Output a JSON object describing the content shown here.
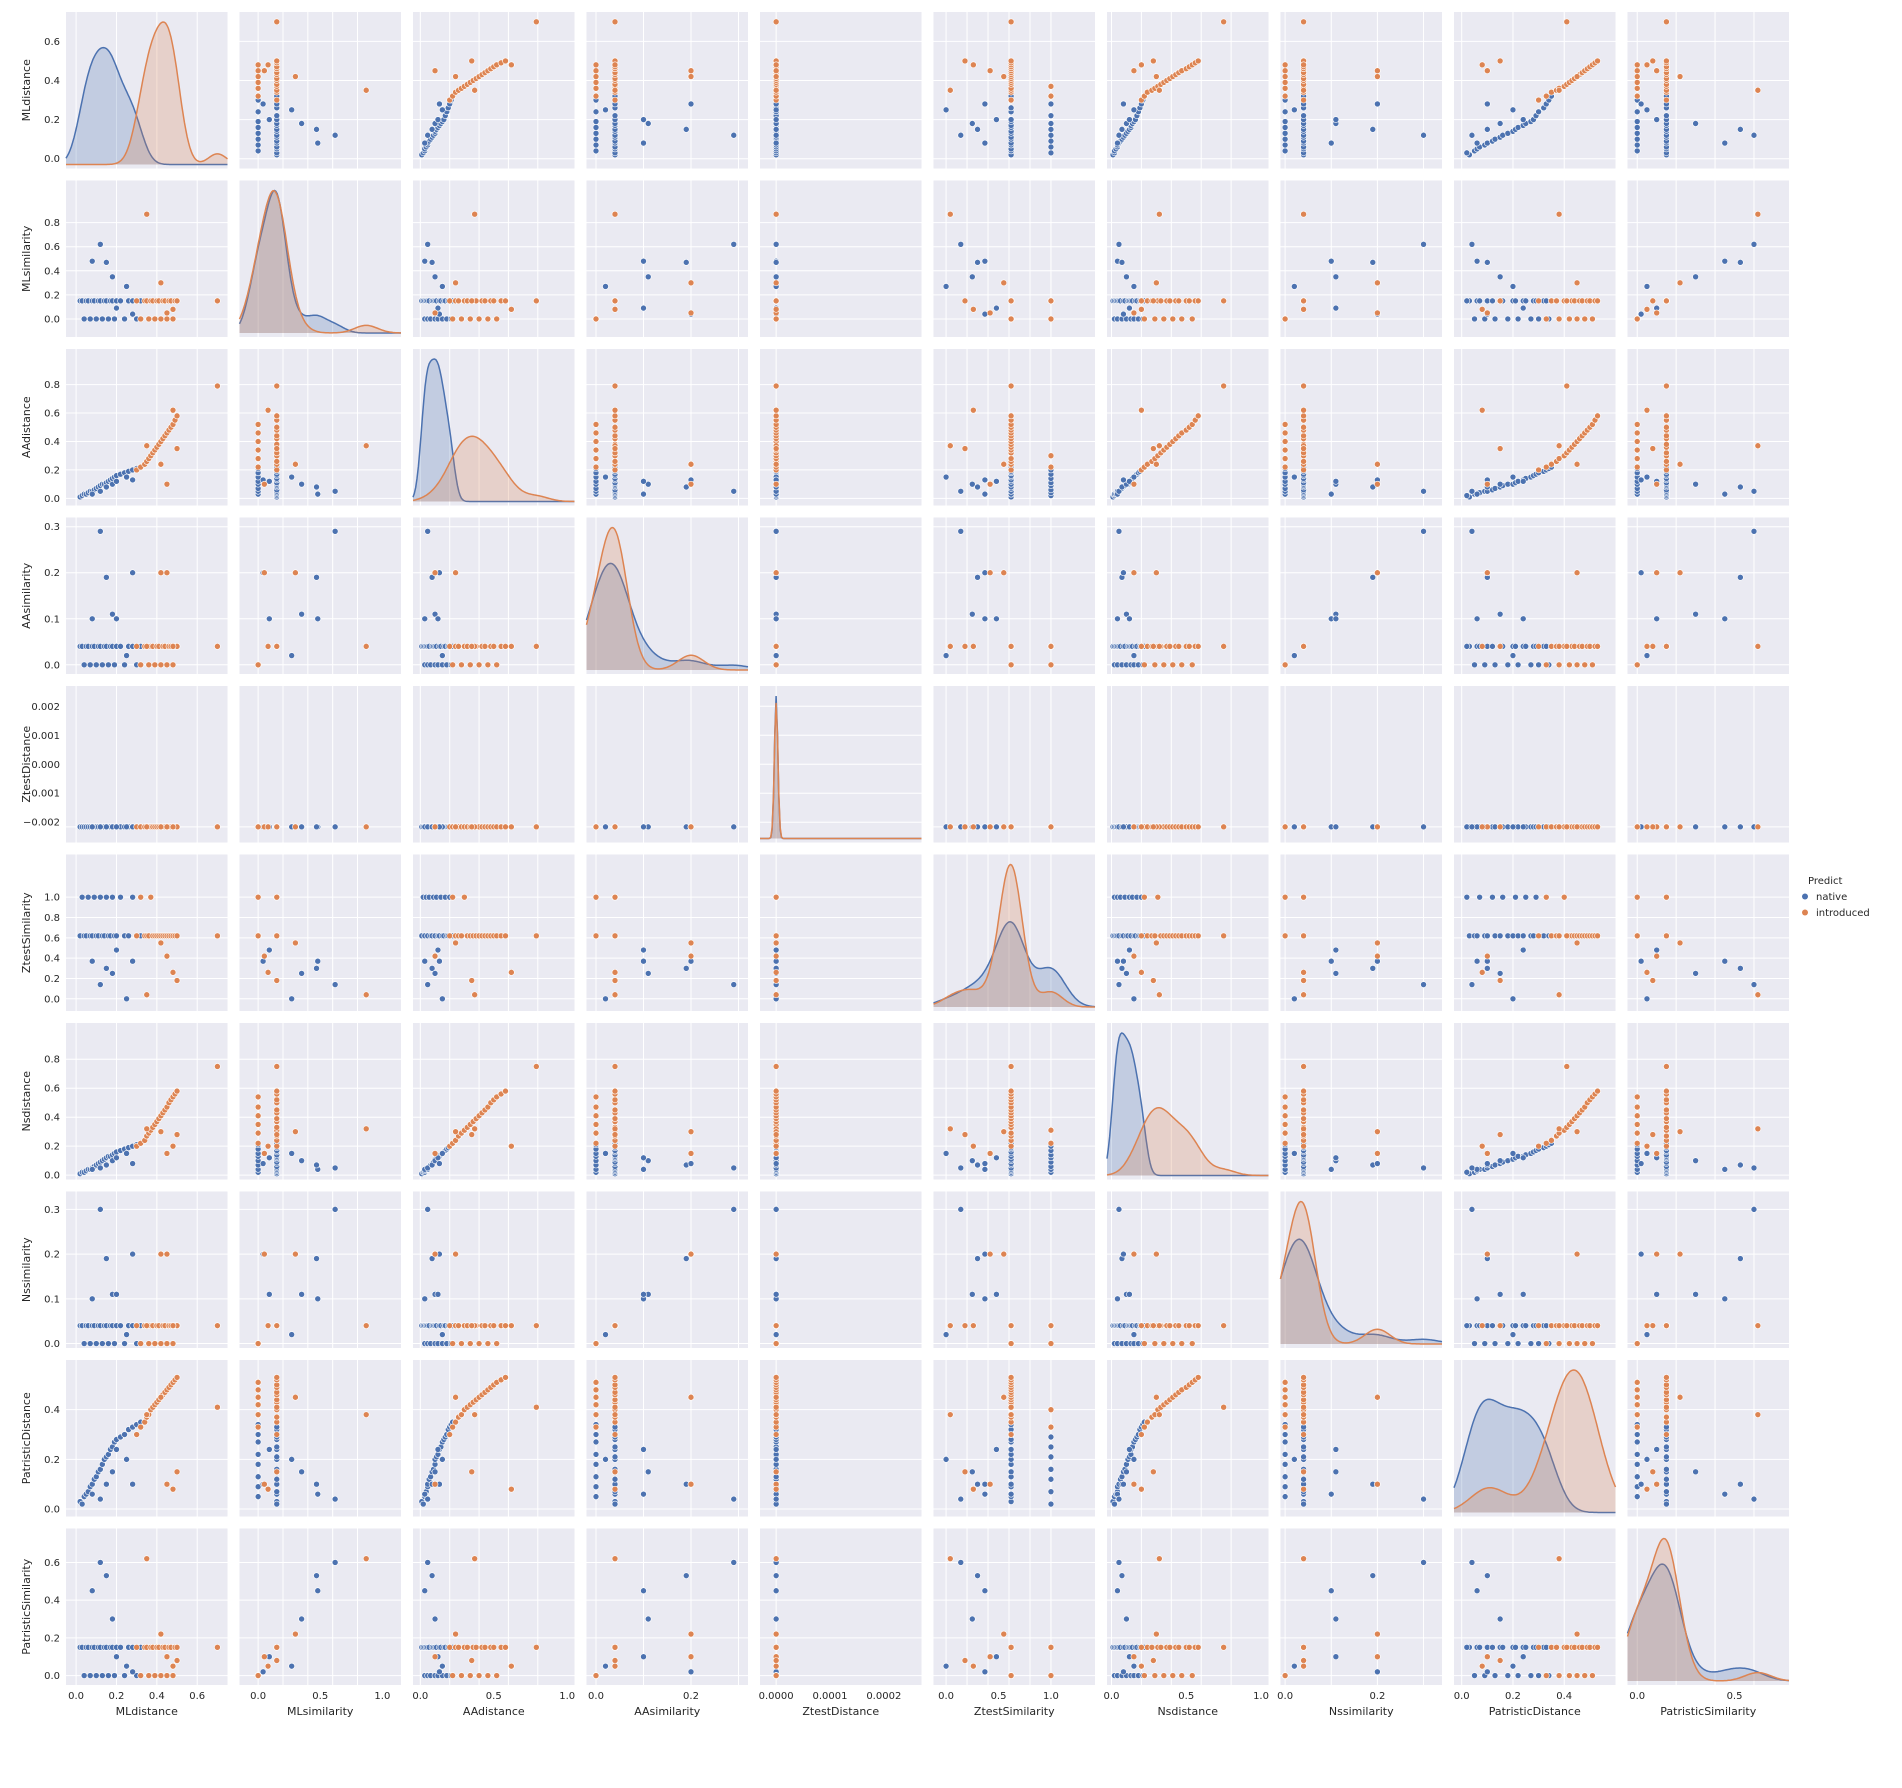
{
  "chart_data": {
    "type": "scatter",
    "subtype": "pairplot",
    "variables": [
      "MLdistance",
      "MLsimilarity",
      "AAdistance",
      "AAsimilarity",
      "ZtestDistance",
      "ZtestSimilarity",
      "Nsdistance",
      "Nssimilarity",
      "PatristicDistance",
      "PatristicSimilarity"
    ],
    "ranges": {
      "MLdistance": [
        -0.05,
        0.75
      ],
      "MLsimilarity": [
        -0.15,
        1.15
      ],
      "AAdistance": [
        -0.05,
        1.05
      ],
      "AAsimilarity": [
        -0.02,
        0.32
      ],
      "ZtestDistance": [
        -3e-05,
        0.00027
      ],
      "ZtestSimilarity": [
        -0.12,
        1.42
      ],
      "Nsdistance": [
        -0.03,
        1.05
      ],
      "Nssimilarity": [
        -0.01,
        0.34
      ],
      "PatristicDistance": [
        -0.03,
        0.6
      ],
      "PatristicSimilarity": [
        -0.05,
        0.78
      ]
    },
    "kde_ranges_y": {
      "ZtestDistance": [
        -0.0027,
        0.0027
      ]
    },
    "ticks": {
      "MLdistance": [
        0.0,
        0.2,
        0.4,
        0.6
      ],
      "MLsimilarity": [
        0.0,
        0.2,
        0.4,
        0.6,
        0.8
      ],
      "AAdistance": [
        0.0,
        0.2,
        0.4,
        0.6,
        0.8
      ],
      "AAsimilarity": [
        0.0,
        0.1,
        0.2,
        0.3
      ],
      "ZtestDistance": [
        -0.002,
        -0.001,
        0.0,
        0.001,
        0.002
      ],
      "ZtestSimilarity": [
        0.0,
        0.2,
        0.4,
        0.6,
        0.8,
        1.0
      ],
      "Nsdistance": [
        0.0,
        0.2,
        0.4,
        0.6,
        0.8
      ],
      "Nssimilarity": [
        0.0,
        0.1,
        0.2,
        0.3
      ],
      "PatristicDistance": [
        0.0,
        0.2,
        0.4
      ],
      "PatristicSimilarity": [
        0.0,
        0.2,
        0.4,
        0.6
      ]
    },
    "xticks_bottom": {
      "MLdistance": [
        0.0,
        0.2,
        0.4,
        0.6
      ],
      "MLsimilarity": [
        0.0,
        0.5,
        1.0
      ],
      "AAdistance": [
        0.0,
        0.5,
        1.0
      ],
      "AAsimilarity": [
        0.0,
        0.2
      ],
      "ZtestDistance": [
        0.0,
        0.0001,
        0.0002
      ],
      "ZtestSimilarity": [
        0.0,
        0.5,
        1.0
      ],
      "Nsdistance": [
        0.0,
        0.5,
        1.0
      ],
      "Nssimilarity": [
        0.0,
        0.2
      ],
      "PatristicDistance": [
        0.0,
        0.2,
        0.4
      ],
      "PatristicSimilarity": [
        0.0,
        0.5
      ]
    },
    "tick_labels": {
      "MLdistance": [
        "0.0",
        "0.2",
        "0.4",
        "0.6"
      ],
      "MLsimilarity": [
        "0.0",
        "0.2",
        "0.4",
        "0.6",
        "0.8"
      ],
      "AAdistance": [
        "0.0",
        "0.2",
        "0.4",
        "0.6",
        "0.8"
      ],
      "AAsimilarity": [
        "0.0",
        "0.1",
        "0.2",
        "0.3"
      ],
      "ZtestDistance": [
        "−0.002",
        "−0.001",
        "0.000",
        "0.001",
        "0.002"
      ],
      "ZtestSimilarity": [
        "0.0",
        "0.2",
        "0.4",
        "0.6",
        "0.8",
        "1.0"
      ],
      "Nsdistance": [
        "0.0",
        "0.2",
        "0.4",
        "0.6",
        "0.8"
      ],
      "Nssimilarity": [
        "0.0",
        "0.1",
        "0.2",
        "0.3"
      ],
      "PatristicDistance": [
        "0.0",
        "0.2",
        "0.4"
      ],
      "PatristicSimilarity": [
        "0.0",
        "0.2",
        "0.4",
        "0.6"
      ]
    },
    "xtick_labels_bottom": {
      "MLdistance": [
        "0.0",
        "0.2",
        "0.4",
        "0.6"
      ],
      "MLsimilarity": [
        "0.0",
        "0.5",
        "1.0"
      ],
      "AAdistance": [
        "0.0",
        "0.5",
        "1.0"
      ],
      "AAsimilarity": [
        "0.0",
        "0.2"
      ],
      "ZtestDistance": [
        "0.0000",
        "0.0001",
        "0.0002"
      ],
      "ZtestSimilarity": [
        "0.0",
        "0.5",
        "1.0"
      ],
      "Nsdistance": [
        "0.0",
        "0.5",
        "1.0"
      ],
      "Nssimilarity": [
        "0.0",
        "0.2"
      ],
      "PatristicDistance": [
        "0.0",
        "0.2",
        "0.4"
      ],
      "PatristicSimilarity": [
        "0.0",
        "0.5"
      ]
    },
    "hue": "Predict",
    "legend": {
      "title": "Predict",
      "entries": [
        "native",
        "introduced"
      ],
      "position": "right-center"
    },
    "colors": {
      "native": "#4c72b0",
      "introduced": "#dd8452",
      "panel_bg": "#eaeaf2",
      "grid": "#ffffff"
    },
    "grid": true,
    "series": [
      {
        "name": "native",
        "points": [
          [
            0.02,
            0.15,
            0.01,
            0.04,
            0.0,
            0.62,
            0.01,
            0.04,
            0.03,
            0.15
          ],
          [
            0.03,
            0.15,
            0.02,
            0.04,
            0.0,
            1.0,
            0.02,
            0.04,
            0.02,
            0.15
          ],
          [
            0.04,
            0.0,
            0.03,
            0.0,
            0.0,
            0.62,
            0.02,
            0.0,
            0.05,
            0.0
          ],
          [
            0.05,
            0.15,
            0.03,
            0.04,
            0.0,
            0.62,
            0.03,
            0.04,
            0.06,
            0.15
          ],
          [
            0.06,
            0.15,
            0.04,
            0.04,
            0.0,
            1.0,
            0.04,
            0.04,
            0.07,
            0.15
          ],
          [
            0.07,
            0.0,
            0.05,
            0.0,
            0.0,
            0.62,
            0.04,
            0.0,
            0.09,
            0.0
          ],
          [
            0.08,
            0.15,
            0.05,
            0.04,
            0.0,
            0.62,
            0.05,
            0.04,
            0.1,
            0.15
          ],
          [
            0.09,
            0.15,
            0.06,
            0.04,
            0.0,
            1.0,
            0.06,
            0.04,
            0.12,
            0.15
          ],
          [
            0.1,
            0.0,
            0.07,
            0.0,
            0.0,
            0.62,
            0.07,
            0.0,
            0.13,
            0.0
          ],
          [
            0.11,
            0.15,
            0.08,
            0.04,
            0.0,
            0.62,
            0.08,
            0.04,
            0.15,
            0.15
          ],
          [
            0.12,
            0.15,
            0.09,
            0.04,
            0.0,
            1.0,
            0.09,
            0.04,
            0.16,
            0.15
          ],
          [
            0.13,
            0.0,
            0.1,
            0.0,
            0.0,
            0.62,
            0.1,
            0.0,
            0.18,
            0.0
          ],
          [
            0.14,
            0.15,
            0.1,
            0.04,
            0.0,
            0.62,
            0.11,
            0.04,
            0.2,
            0.15
          ],
          [
            0.15,
            0.15,
            0.11,
            0.04,
            0.0,
            1.0,
            0.12,
            0.04,
            0.21,
            0.15
          ],
          [
            0.16,
            0.0,
            0.12,
            0.0,
            0.0,
            0.62,
            0.13,
            0.0,
            0.22,
            0.0
          ],
          [
            0.17,
            0.15,
            0.13,
            0.04,
            0.0,
            0.62,
            0.13,
            0.04,
            0.24,
            0.15
          ],
          [
            0.18,
            0.15,
            0.14,
            0.04,
            0.0,
            1.0,
            0.14,
            0.04,
            0.25,
            0.15
          ],
          [
            0.19,
            0.0,
            0.15,
            0.0,
            0.0,
            0.62,
            0.15,
            0.0,
            0.27,
            0.0
          ],
          [
            0.2,
            0.15,
            0.16,
            0.04,
            0.0,
            0.62,
            0.16,
            0.04,
            0.28,
            0.15
          ],
          [
            0.22,
            0.15,
            0.17,
            0.04,
            0.0,
            1.0,
            0.17,
            0.04,
            0.29,
            0.15
          ],
          [
            0.24,
            0.0,
            0.18,
            0.0,
            0.0,
            0.62,
            0.18,
            0.0,
            0.3,
            0.0
          ],
          [
            0.26,
            0.15,
            0.19,
            0.04,
            0.0,
            0.62,
            0.19,
            0.04,
            0.32,
            0.15
          ],
          [
            0.28,
            0.15,
            0.2,
            0.04,
            0.0,
            1.0,
            0.2,
            0.04,
            0.33,
            0.15
          ],
          [
            0.3,
            0.0,
            0.21,
            0.0,
            0.0,
            0.62,
            0.21,
            0.0,
            0.34,
            0.0
          ],
          [
            0.32,
            0.15,
            0.22,
            0.04,
            0.0,
            0.62,
            0.22,
            0.04,
            0.35,
            0.15
          ],
          [
            0.08,
            0.48,
            0.03,
            0.1,
            0.0,
            0.37,
            0.04,
            0.1,
            0.06,
            0.45
          ],
          [
            0.12,
            0.62,
            0.05,
            0.29,
            0.0,
            0.14,
            0.05,
            0.3,
            0.04,
            0.6
          ],
          [
            0.15,
            0.47,
            0.08,
            0.19,
            0.0,
            0.3,
            0.07,
            0.19,
            0.1,
            0.53
          ],
          [
            0.18,
            0.35,
            0.1,
            0.11,
            0.0,
            0.25,
            0.1,
            0.11,
            0.15,
            0.3
          ],
          [
            0.2,
            0.09,
            0.12,
            0.1,
            0.0,
            0.48,
            0.12,
            0.11,
            0.24,
            0.1
          ],
          [
            0.25,
            0.27,
            0.15,
            0.02,
            0.0,
            0.0,
            0.15,
            0.02,
            0.2,
            0.05
          ],
          [
            0.28,
            0.04,
            0.13,
            0.2,
            0.0,
            0.37,
            0.08,
            0.2,
            0.1,
            0.02
          ]
        ]
      },
      {
        "name": "introduced",
        "points": [
          [
            0.3,
            0.15,
            0.2,
            0.04,
            0.0,
            0.62,
            0.2,
            0.04,
            0.3,
            0.15
          ],
          [
            0.32,
            0.0,
            0.22,
            0.0,
            0.0,
            1.0,
            0.22,
            0.0,
            0.33,
            0.0
          ],
          [
            0.34,
            0.15,
            0.24,
            0.04,
            0.0,
            0.62,
            0.24,
            0.04,
            0.35,
            0.15
          ],
          [
            0.35,
            0.15,
            0.26,
            0.04,
            0.0,
            0.62,
            0.27,
            0.04,
            0.37,
            0.15
          ],
          [
            0.36,
            0.0,
            0.28,
            0.0,
            0.0,
            0.62,
            0.29,
            0.0,
            0.38,
            0.0
          ],
          [
            0.37,
            0.15,
            0.3,
            0.04,
            0.0,
            1.0,
            0.31,
            0.04,
            0.4,
            0.15
          ],
          [
            0.38,
            0.15,
            0.32,
            0.04,
            0.0,
            0.62,
            0.33,
            0.04,
            0.41,
            0.15
          ],
          [
            0.39,
            0.0,
            0.34,
            0.0,
            0.0,
            0.62,
            0.35,
            0.0,
            0.42,
            0.0
          ],
          [
            0.4,
            0.15,
            0.36,
            0.04,
            0.0,
            0.62,
            0.37,
            0.04,
            0.43,
            0.15
          ],
          [
            0.41,
            0.15,
            0.38,
            0.04,
            0.0,
            0.62,
            0.39,
            0.04,
            0.44,
            0.15
          ],
          [
            0.42,
            0.0,
            0.4,
            0.0,
            0.0,
            0.62,
            0.41,
            0.0,
            0.45,
            0.0
          ],
          [
            0.43,
            0.15,
            0.42,
            0.04,
            0.0,
            0.62,
            0.43,
            0.04,
            0.46,
            0.15
          ],
          [
            0.44,
            0.15,
            0.44,
            0.04,
            0.0,
            0.62,
            0.45,
            0.04,
            0.47,
            0.15
          ],
          [
            0.45,
            0.0,
            0.46,
            0.0,
            0.0,
            0.62,
            0.47,
            0.0,
            0.48,
            0.0
          ],
          [
            0.46,
            0.15,
            0.48,
            0.04,
            0.0,
            0.62,
            0.5,
            0.04,
            0.49,
            0.15
          ],
          [
            0.47,
            0.15,
            0.5,
            0.04,
            0.0,
            0.62,
            0.52,
            0.04,
            0.5,
            0.15
          ],
          [
            0.48,
            0.0,
            0.52,
            0.0,
            0.0,
            0.62,
            0.54,
            0.0,
            0.51,
            0.0
          ],
          [
            0.49,
            0.15,
            0.55,
            0.04,
            0.0,
            0.62,
            0.56,
            0.04,
            0.52,
            0.15
          ],
          [
            0.5,
            0.15,
            0.58,
            0.04,
            0.0,
            0.62,
            0.58,
            0.04,
            0.53,
            0.15
          ],
          [
            0.35,
            0.87,
            0.37,
            0.04,
            0.0,
            0.04,
            0.32,
            0.04,
            0.38,
            0.62
          ],
          [
            0.42,
            0.3,
            0.24,
            0.2,
            0.0,
            0.55,
            0.3,
            0.2,
            0.45,
            0.22
          ],
          [
            0.45,
            0.05,
            0.1,
            0.2,
            0.0,
            0.42,
            0.15,
            0.2,
            0.1,
            0.1
          ],
          [
            0.5,
            0.15,
            0.35,
            0.04,
            0.0,
            0.18,
            0.28,
            0.04,
            0.15,
            0.08
          ],
          [
            0.7,
            0.15,
            0.79,
            0.04,
            0.0,
            0.62,
            0.75,
            0.04,
            0.41,
            0.15
          ],
          [
            0.48,
            0.08,
            0.62,
            0.04,
            0.0,
            0.26,
            0.2,
            0.04,
            0.08,
            0.05
          ]
        ]
      }
    ]
  }
}
